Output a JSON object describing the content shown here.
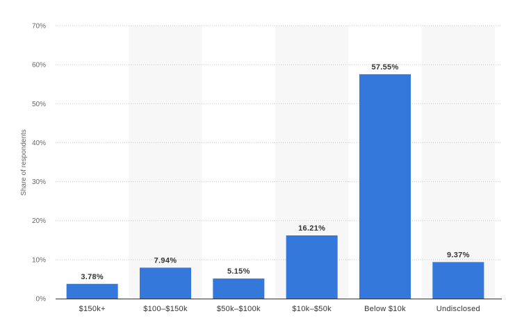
{
  "chart_data": {
    "type": "bar",
    "title": "",
    "xlabel": "",
    "ylabel": "Share of respondents",
    "categories": [
      "$150k+",
      "$100–$150k",
      "$50k–$100k",
      "$10k–$50k",
      "Below $10k",
      "Undisclosed"
    ],
    "values": [
      3.78,
      7.94,
      5.15,
      16.21,
      57.55,
      9.37
    ],
    "value_labels": [
      "3.78%",
      "7.94%",
      "5.15%",
      "16.21%",
      "57.55%",
      "9.37%"
    ],
    "ylim": [
      0,
      70
    ],
    "yticks": [
      0,
      10,
      20,
      30,
      40,
      50,
      60,
      70
    ],
    "ytick_labels": [
      "0%",
      "10%",
      "20%",
      "30%",
      "40%",
      "50%",
      "60%",
      "70%"
    ],
    "grid": true,
    "alternating_band_shading": true,
    "legend": "none",
    "colors": {
      "bar": "#3478db",
      "band": "#f7f7f7",
      "grid": "#c9c9c9",
      "axis": "#333333"
    }
  }
}
